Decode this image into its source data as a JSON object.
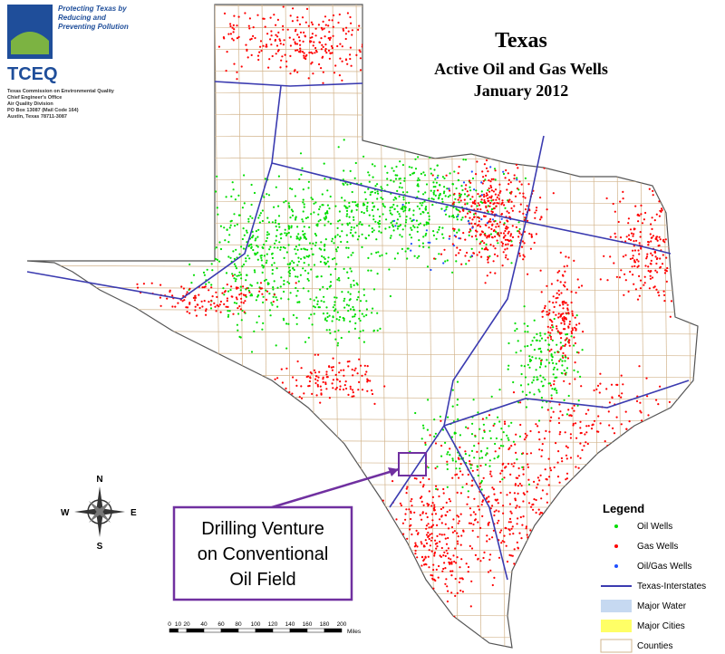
{
  "header": {
    "tagline": [
      "Protecting Texas by",
      "Reducing and",
      "Preventing Pollution"
    ],
    "logo": "TCEQ",
    "org": [
      "Texas Commission on Environmental Quality",
      "Chief Engineer's Office",
      "Air Quality Division",
      "PO Box 13087 (Mail Code 164)",
      "Austin, Texas 78711-3087"
    ]
  },
  "title": [
    "Texas",
    "Active Oil and Gas Wells",
    "January 2012"
  ],
  "legend": {
    "title": "Legend",
    "items": [
      "Oil Wells",
      "Gas Wells",
      "Oil/Gas Wells",
      "Texas-Interstates",
      "Major Water",
      "Major Cities",
      "Counties"
    ]
  },
  "callout": [
    "Drilling Venture",
    "on Conventional",
    "Oil Field"
  ],
  "compass": {
    "n": "N",
    "s": "S",
    "e": "E",
    "w": "W"
  },
  "scale": {
    "ticks": [
      0,
      10,
      20,
      40,
      60,
      80,
      100,
      120,
      140,
      160,
      180,
      200
    ],
    "unit": "Miles"
  }
}
